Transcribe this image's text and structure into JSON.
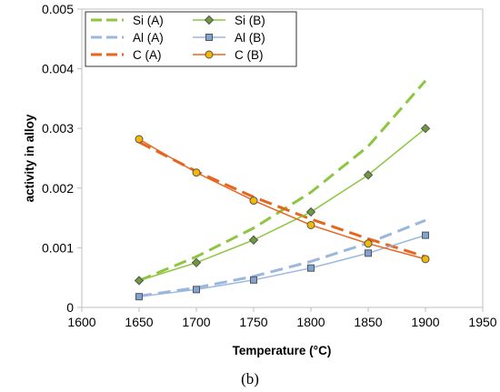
{
  "chart_data": {
    "type": "line",
    "xlabel": "Temperature (°C)",
    "ylabel": "activity in alloy",
    "xlim": [
      1600,
      1950
    ],
    "ylim": [
      0,
      0.005
    ],
    "xticks": [
      "1600",
      "1650",
      "1700",
      "1750",
      "1800",
      "1850",
      "1900",
      "1950"
    ],
    "yticks": [
      "0",
      "0.001",
      "0.002",
      "0.003",
      "0.004",
      "0.005"
    ],
    "grid": false,
    "legend_position": "top-left",
    "series": [
      {
        "name": "Si (A)",
        "style": "dashed",
        "color": "#8DC641",
        "x": [
          1650,
          1700,
          1750,
          1800,
          1850,
          1900
        ],
        "y": [
          0.00045,
          0.00085,
          0.00133,
          0.00193,
          0.0027,
          0.0038
        ]
      },
      {
        "name": "Si (B)",
        "style": "solid-marker",
        "marker": "diamond",
        "color": "#8DC641",
        "markerColor": "#6E9A38",
        "x": [
          1650,
          1700,
          1750,
          1800,
          1850,
          1900
        ],
        "y": [
          0.00045,
          0.00075,
          0.00113,
          0.0016,
          0.00222,
          0.003
        ]
      },
      {
        "name": "Al (A)",
        "style": "dashed",
        "color": "#9BB7DD",
        "x": [
          1650,
          1700,
          1750,
          1800,
          1850,
          1900
        ],
        "y": [
          0.00019,
          0.00033,
          0.00052,
          0.00077,
          0.00108,
          0.00146
        ]
      },
      {
        "name": "Al (B)",
        "style": "solid-marker",
        "marker": "square",
        "color": "#9BB7DD",
        "markerColor": "#7FA3D4",
        "x": [
          1650,
          1700,
          1750,
          1800,
          1850,
          1900
        ],
        "y": [
          0.00018,
          0.0003,
          0.00046,
          0.00066,
          0.00091,
          0.00121
        ]
      },
      {
        "name": "C (A)",
        "style": "dashed",
        "color": "#E6661E",
        "x": [
          1650,
          1700,
          1750,
          1800,
          1850,
          1900
        ],
        "y": [
          0.00277,
          0.00228,
          0.00185,
          0.00148,
          0.00115,
          0.00085
        ]
      },
      {
        "name": "C (B)",
        "style": "solid-marker",
        "marker": "circle",
        "color": "#E6661E",
        "markerColor": "#F5B800",
        "x": [
          1650,
          1700,
          1750,
          1800,
          1850,
          1900
        ],
        "y": [
          0.00282,
          0.00226,
          0.00179,
          0.00138,
          0.00107,
          0.00081
        ]
      }
    ]
  },
  "caption": "(b)"
}
